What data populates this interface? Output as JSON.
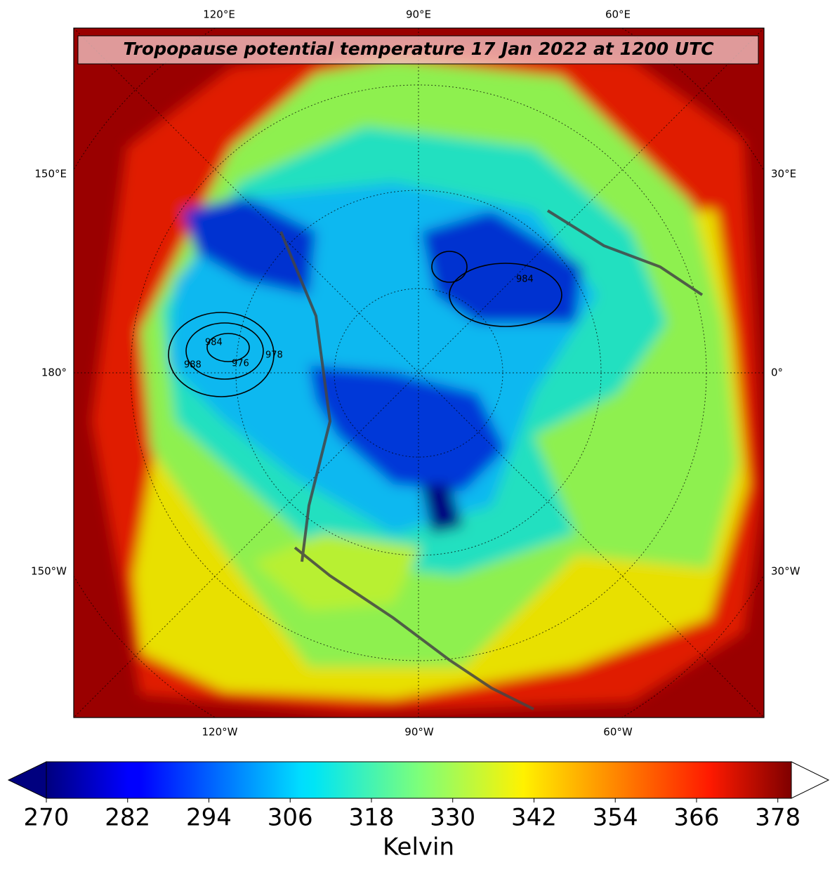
{
  "header": {
    "title": "Tropopause potential temperature 17 Jan 2022 at 1200 UTC"
  },
  "map": {
    "top_labels": [
      "120°E",
      "90°E",
      "60°E"
    ],
    "bottom_labels": [
      "120°W",
      "90°W",
      "60°W"
    ],
    "left_labels": [
      "150°E",
      "180°",
      "150°W"
    ],
    "right_labels": [
      "30°E",
      "0°",
      "30°W"
    ],
    "contour_labels": [
      "984",
      "976",
      "988",
      "984",
      "978"
    ]
  },
  "colorbar": {
    "colormap": "jet",
    "range": [
      270,
      380
    ],
    "ticks": [
      270,
      282,
      294,
      306,
      318,
      330,
      342,
      354,
      366,
      378
    ],
    "label": "Kelvin",
    "extend": "both"
  }
}
